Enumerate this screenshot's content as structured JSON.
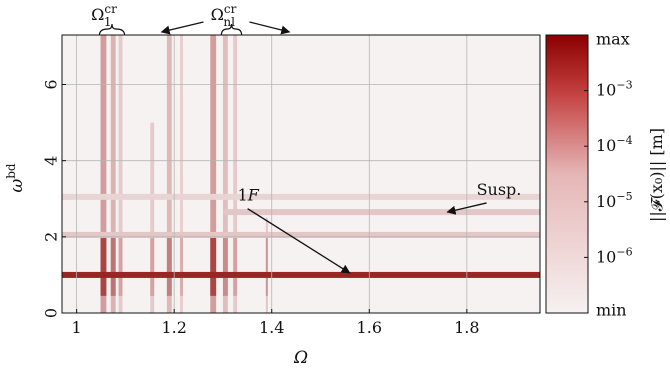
{
  "chart_data": {
    "type": "heatmap",
    "title": "",
    "xlabel": "Ω",
    "ylabel": "ω",
    "ylabel_sup": "bd",
    "xlim": [
      0.97,
      1.95
    ],
    "ylim": [
      0,
      7.3
    ],
    "x_ticks": [
      1,
      1.2,
      1.4,
      1.6,
      1.8
    ],
    "x_tick_labels": [
      "1",
      "1.2",
      "1.4",
      "1.6",
      "1.8"
    ],
    "y_ticks": [
      0,
      2,
      4,
      6
    ],
    "y_tick_labels": [
      "0",
      "2",
      "4",
      "6"
    ],
    "grid": true,
    "colormap": {
      "low": "#f6f1f1",
      "high": "#8b0000"
    },
    "colorbar": {
      "label": "||𝓕(x₀)|| [m]",
      "top_label": "max",
      "bottom_label": "min",
      "ticks": [
        {
          "base": "10",
          "exp": "−3",
          "level": 0.8
        },
        {
          "base": "10",
          "exp": "−4",
          "level": 0.6
        },
        {
          "base": "10",
          "exp": "−5",
          "level": 0.4
        },
        {
          "base": "10",
          "exp": "−6",
          "level": 0.2
        }
      ]
    },
    "critical_bands": [
      {
        "x": 1.055,
        "width": 0.012,
        "intensity": 0.75,
        "ymax": 7.3
      },
      {
        "x": 1.075,
        "width": 0.01,
        "intensity": 0.55,
        "ymax": 7.3
      },
      {
        "x": 1.09,
        "width": 0.008,
        "intensity": 0.35,
        "ymax": 7.3
      },
      {
        "x": 1.155,
        "width": 0.008,
        "intensity": 0.35,
        "ymax": 5.0
      },
      {
        "x": 1.19,
        "width": 0.01,
        "intensity": 0.5,
        "ymax": 7.3
      },
      {
        "x": 1.215,
        "width": 0.006,
        "intensity": 0.3,
        "ymax": 7.3
      },
      {
        "x": 1.28,
        "width": 0.012,
        "intensity": 0.75,
        "ymax": 7.3
      },
      {
        "x": 1.305,
        "width": 0.01,
        "intensity": 0.45,
        "ymax": 7.3
      },
      {
        "x": 1.325,
        "width": 0.008,
        "intensity": 0.35,
        "ymax": 7.3
      },
      {
        "x": 1.39,
        "width": 0.004,
        "intensity": 0.4,
        "ymax": 2.5
      }
    ],
    "horizontal_lines": [
      {
        "y": 1.0,
        "x_start": 0.97,
        "x_end": 1.95,
        "intensity": 0.85
      },
      {
        "y": 2.05,
        "x_start": 0.97,
        "x_end": 1.95,
        "intensity": 0.18
      },
      {
        "y": 2.65,
        "x_start": 1.3,
        "x_end": 1.95,
        "intensity": 0.18
      },
      {
        "y": 3.05,
        "x_start": 0.97,
        "x_end": 1.95,
        "intensity": 0.12
      }
    ],
    "annotations": [
      {
        "text": "Susp.",
        "text_x": 1.82,
        "text_y": 3.1,
        "arrow_to_x": 1.76,
        "arrow_to_y": 2.65
      },
      {
        "text": "1",
        "text_italic": "F",
        "text_x": 1.33,
        "text_y": 2.95,
        "arrow_to_x": 1.56,
        "arrow_to_y": 1.05
      }
    ],
    "top_labels": [
      {
        "base": "Ω",
        "sup": "cr",
        "sub": "1",
        "x_from": 1.055,
        "x_to": 1.09
      },
      {
        "base": "Ω",
        "sup": "cr",
        "sub": "nl",
        "x_from": 1.305,
        "x_to": 1.33
      }
    ]
  }
}
